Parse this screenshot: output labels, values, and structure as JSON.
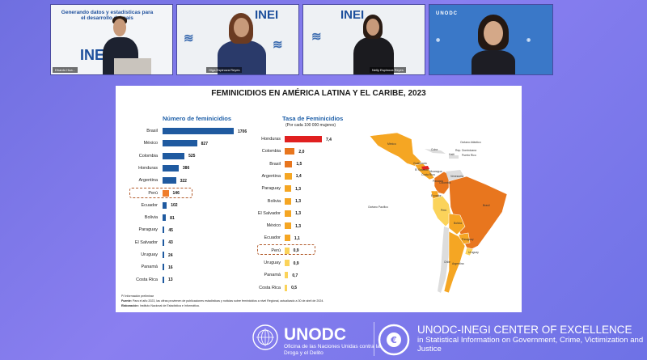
{
  "video_tiles": [
    {
      "name": "speaker-1",
      "caption": "Dhardo Hua...",
      "banner": "Generando datos y estadísticas para el desarrollo del país",
      "logo": "INEI"
    },
    {
      "name": "speaker-2",
      "caption": "Olga Espinoza Reyes",
      "logo": "INEI"
    },
    {
      "name": "speaker-3",
      "caption": "Nelly Espinoza Reyes",
      "logo": "INEI"
    },
    {
      "name": "speaker-4",
      "caption": "",
      "logo": "UNODC"
    }
  ],
  "slide": {
    "title": "FEMINICIDIOS EN AMÉRICA LATINA Y EL CARIBE, 2023",
    "footnotes": {
      "prelim": "P/ Información preliminar",
      "source_label": "Fuente:",
      "source": "Para el año 2023, las cifras provienen de publicaciones estadísticas y noticias sobre feminicidios a nivel Regional, actualizado a 30 de abril de 2024.",
      "elab_label": "Elaboración:",
      "elab": "Instituto Nacional de Estadística e Informática."
    },
    "map_labels": [
      "México",
      "Cuba",
      "Haití",
      "Rep. Dominicana",
      "Puerto Rico",
      "Guatemala",
      "El Salvador",
      "Nicaragua",
      "Costa Rica",
      "Panamá",
      "Venezuela",
      "Colombia",
      "Ecuador",
      "Perú",
      "Brasil",
      "Bolivia",
      "Paraguay",
      "Chile",
      "Argentina",
      "Uruguay",
      "Océano Atlántico",
      "Océano Pacífico"
    ]
  },
  "chart_data": [
    {
      "type": "bar",
      "title": "Número de feminicidios",
      "categories": [
        "Brasil",
        "México",
        "Colombia",
        "Honduras",
        "Argentina",
        "Perú",
        "Ecuador",
        "Bolivia",
        "Paraguay",
        "El Salvador",
        "Uruguay",
        "Panamá",
        "Costa Rica"
      ],
      "values": [
        1706,
        827,
        525,
        386,
        322,
        146,
        102,
        81,
        45,
        43,
        24,
        16,
        13
      ],
      "value_labels": [
        "1706",
        "827",
        "525",
        "386",
        "322",
        "146",
        "102",
        "81",
        "45",
        "43",
        "24",
        "16",
        "13"
      ],
      "highlight": "Perú",
      "orientation": "horizontal",
      "colors": {
        "default": "#1f5aa0",
        "highlight": "#ef7d2b"
      }
    },
    {
      "type": "bar",
      "title": "Tasa de Feminicidios",
      "subtitle": "(Por cada 100 000 mujeres)",
      "categories": [
        "Honduras",
        "Colombia",
        "Brasil",
        "Argentina",
        "Paraguay",
        "Bolivia",
        "El Salvador",
        "México",
        "Ecuador",
        "Perú",
        "Uruguay",
        "Panamá",
        "Costa Rica"
      ],
      "values": [
        7.4,
        2.0,
        1.5,
        1.4,
        1.3,
        1.3,
        1.3,
        1.3,
        1.1,
        0.9,
        0.9,
        0.7,
        0.5
      ],
      "value_labels": [
        "7,4",
        "2,0",
        "1,5",
        "1,4",
        "1,3",
        "1,3",
        "1,3",
        "1,3",
        "1,1",
        "0,9",
        "0,9",
        "0,7",
        "0,5"
      ],
      "highlight": "Perú",
      "orientation": "horizontal",
      "colors": [
        "#e02020",
        "#e8761e",
        "#e8761e",
        "#f5a623",
        "#f5a623",
        "#f5a623",
        "#f5a623",
        "#f5a623",
        "#f5a623",
        "#fbd35a",
        "#fbd35a",
        "#fbd35a",
        "#fbd35a"
      ]
    }
  ],
  "branding": {
    "unodc": "UNODC",
    "unodc_sub": "Oficina de las Naciones Unidas contra la Droga y el Delito",
    "coe_title": "UNODC-INEGI CENTER OF EXCELLENCE",
    "coe_sub": "in Statistical Information on Government, Crime, Victimization and Justice"
  }
}
